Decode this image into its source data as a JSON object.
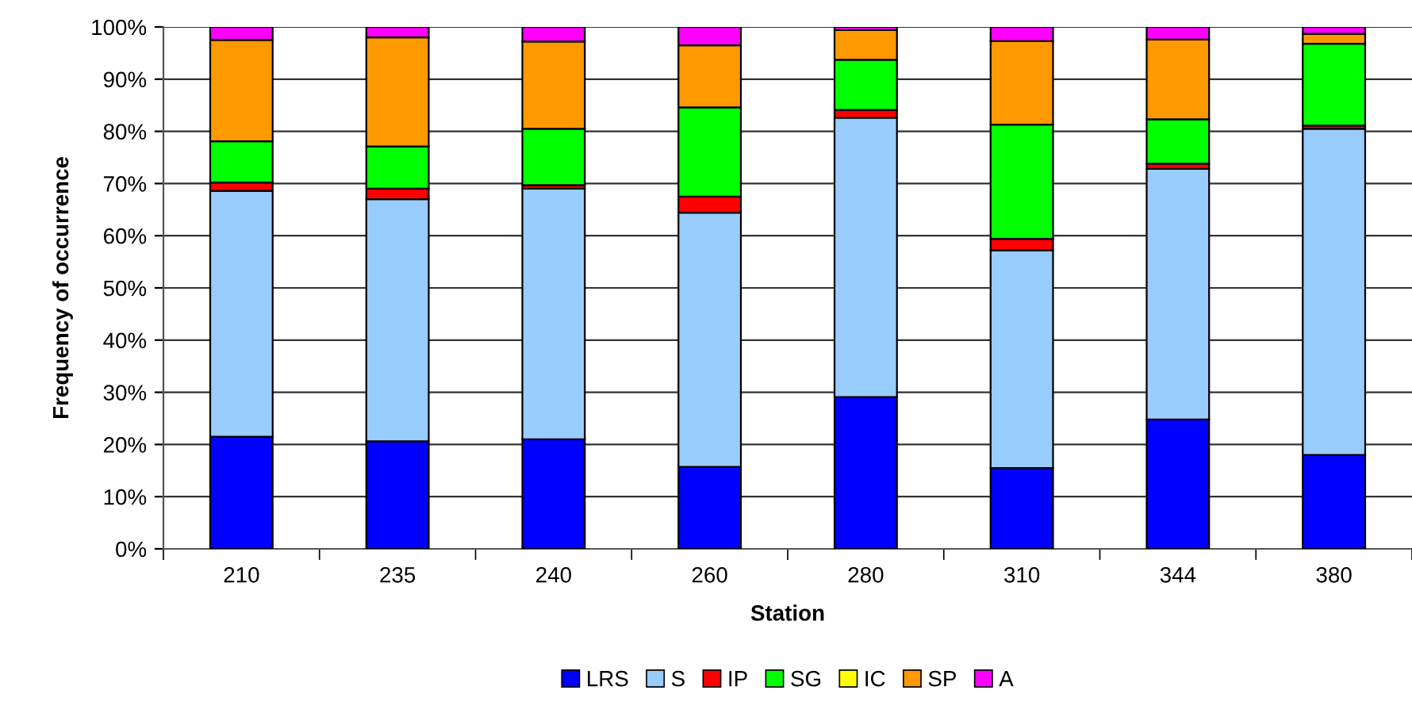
{
  "chart_data": {
    "type": "bar",
    "stacked": true,
    "xlabel": "Station",
    "ylabel": "Frequency of occurrence",
    "categories": [
      "210",
      "235",
      "240",
      "260",
      "280",
      "310",
      "344",
      "380"
    ],
    "series": [
      {
        "name": "LRS",
        "color": "#0000ff",
        "values": [
          21.5,
          20.6,
          21.0,
          15.7,
          29.1,
          15.5,
          24.8,
          18.0
        ]
      },
      {
        "name": "S",
        "color": "#99ccff",
        "values": [
          47.1,
          46.4,
          48.0,
          48.7,
          53.5,
          41.7,
          48.0,
          62.5
        ]
      },
      {
        "name": "IP",
        "color": "#ff0000",
        "values": [
          1.6,
          2.0,
          0.7,
          3.1,
          1.5,
          2.2,
          1.0,
          0.6
        ]
      },
      {
        "name": "SG",
        "color": "#00ff00",
        "values": [
          7.9,
          8.1,
          10.8,
          17.1,
          9.6,
          21.9,
          8.5,
          15.7
        ]
      },
      {
        "name": "IC",
        "color": "#ffff00",
        "values": [
          0,
          0,
          0,
          0,
          0,
          0,
          0,
          0
        ]
      },
      {
        "name": "SP",
        "color": "#ff9900",
        "values": [
          19.4,
          20.9,
          16.7,
          11.9,
          5.7,
          16.0,
          15.3,
          1.9
        ]
      },
      {
        "name": "A",
        "color": "#ff00ff",
        "values": [
          2.5,
          2.0,
          2.8,
          3.5,
          0.6,
          2.7,
          2.4,
          1.3
        ]
      }
    ],
    "ylim": [
      0,
      100
    ],
    "yticks": [
      {
        "value": 0,
        "label": "0%"
      },
      {
        "value": 10,
        "label": "10%"
      },
      {
        "value": 20,
        "label": "20%"
      },
      {
        "value": 30,
        "label": "30%"
      },
      {
        "value": 40,
        "label": "40%"
      },
      {
        "value": 50,
        "label": "50%"
      },
      {
        "value": 60,
        "label": "60%"
      },
      {
        "value": 70,
        "label": "70%"
      },
      {
        "value": 80,
        "label": "80%"
      },
      {
        "value": 90,
        "label": "90%"
      },
      {
        "value": 100,
        "label": "100%"
      }
    ],
    "grid": "y",
    "legend": "bottom"
  }
}
